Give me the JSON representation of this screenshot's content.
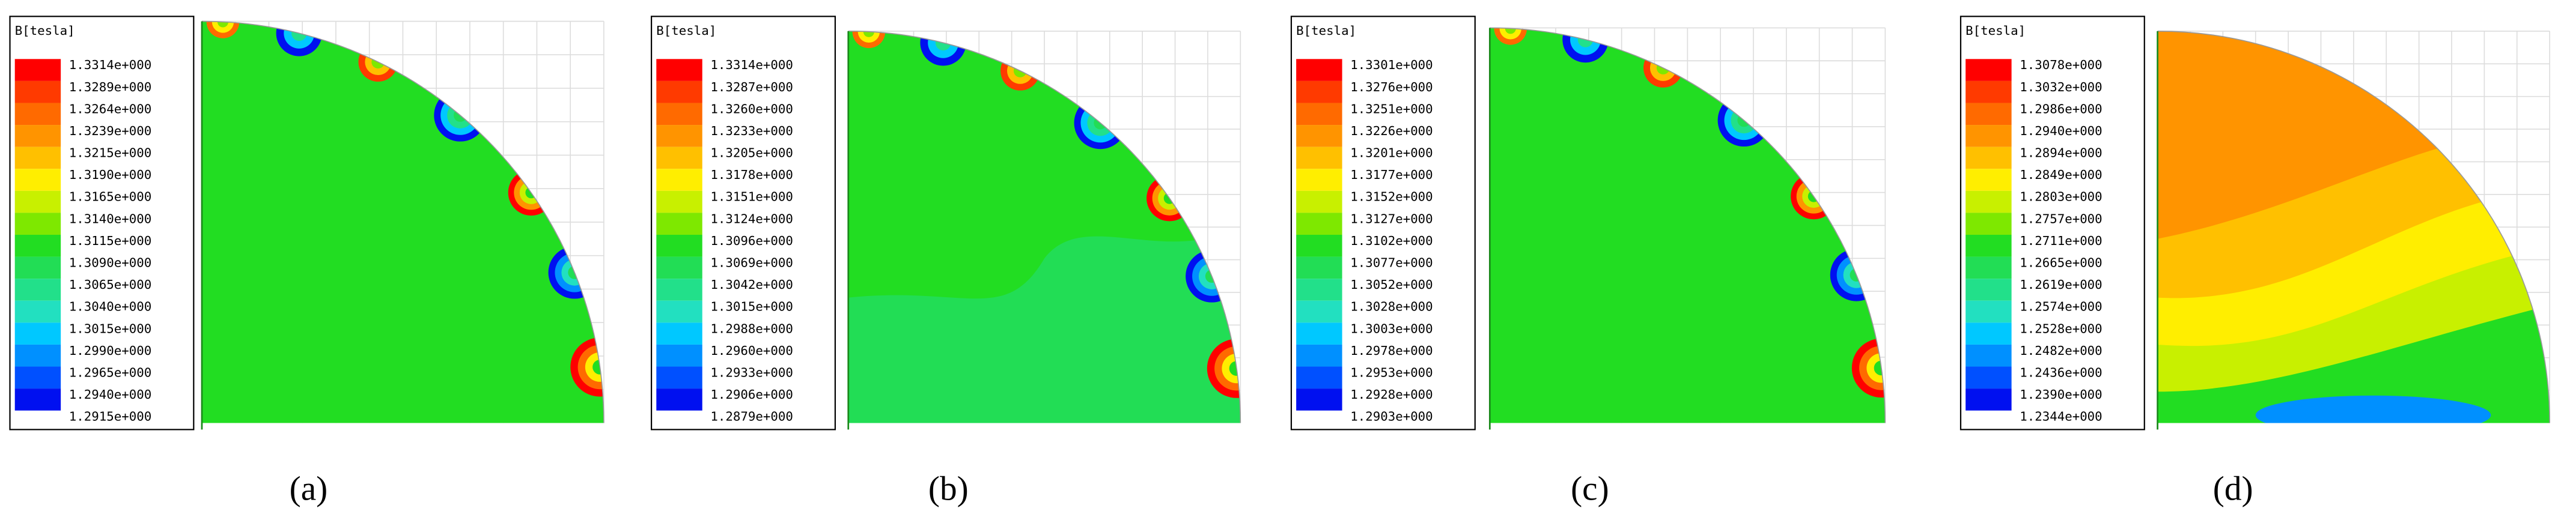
{
  "legend_colors": [
    "#ff0000",
    "#ff3a00",
    "#ff6a00",
    "#ff9400",
    "#ffc000",
    "#ffee00",
    "#c8f000",
    "#7ee800",
    "#22dd22",
    "#22dd55",
    "#22e08a",
    "#22e0c0",
    "#00c8ff",
    "#0090ff",
    "#0050ff",
    "#0010f0"
  ],
  "panels": [
    {
      "legend_title": "B[tesla]",
      "caption": "(a)",
      "legend_labels": [
        "1.3314e+000",
        "1.3289e+000",
        "1.3264e+000",
        "1.3239e+000",
        "1.3215e+000",
        "1.3190e+000",
        "1.3165e+000",
        "1.3140e+000",
        "1.3115e+000",
        "1.3090e+000",
        "1.3065e+000",
        "1.3040e+000",
        "1.3015e+000",
        "1.2990e+000",
        "1.2965e+000",
        "1.2940e+000",
        "1.2915e+000"
      ]
    },
    {
      "legend_title": "B[tesla]",
      "caption": "(b)",
      "legend_labels": [
        "1.3314e+000",
        "1.3287e+000",
        "1.3260e+000",
        "1.3233e+000",
        "1.3205e+000",
        "1.3178e+000",
        "1.3151e+000",
        "1.3124e+000",
        "1.3096e+000",
        "1.3069e+000",
        "1.3042e+000",
        "1.3015e+000",
        "1.2988e+000",
        "1.2960e+000",
        "1.2933e+000",
        "1.2906e+000",
        "1.2879e+000"
      ]
    },
    {
      "legend_title": "B[tesla]",
      "caption": "(c)",
      "legend_labels": [
        "1.3301e+000",
        "1.3276e+000",
        "1.3251e+000",
        "1.3226e+000",
        "1.3201e+000",
        "1.3177e+000",
        "1.3152e+000",
        "1.3127e+000",
        "1.3102e+000",
        "1.3077e+000",
        "1.3052e+000",
        "1.3028e+000",
        "1.3003e+000",
        "1.2978e+000",
        "1.2953e+000",
        "1.2928e+000",
        "1.2903e+000"
      ]
    },
    {
      "legend_title": "B[tesla]",
      "caption": "(d)",
      "legend_labels": [
        "1.3078e+000",
        "1.3032e+000",
        "1.2986e+000",
        "1.2940e+000",
        "1.2894e+000",
        "1.2849e+000",
        "1.2803e+000",
        "1.2757e+000",
        "1.2711e+000",
        "1.2665e+000",
        "1.2619e+000",
        "1.2574e+000",
        "1.2528e+000",
        "1.2482e+000",
        "1.2436e+000",
        "1.2390e+000",
        "1.2344e+000"
      ]
    }
  ]
}
